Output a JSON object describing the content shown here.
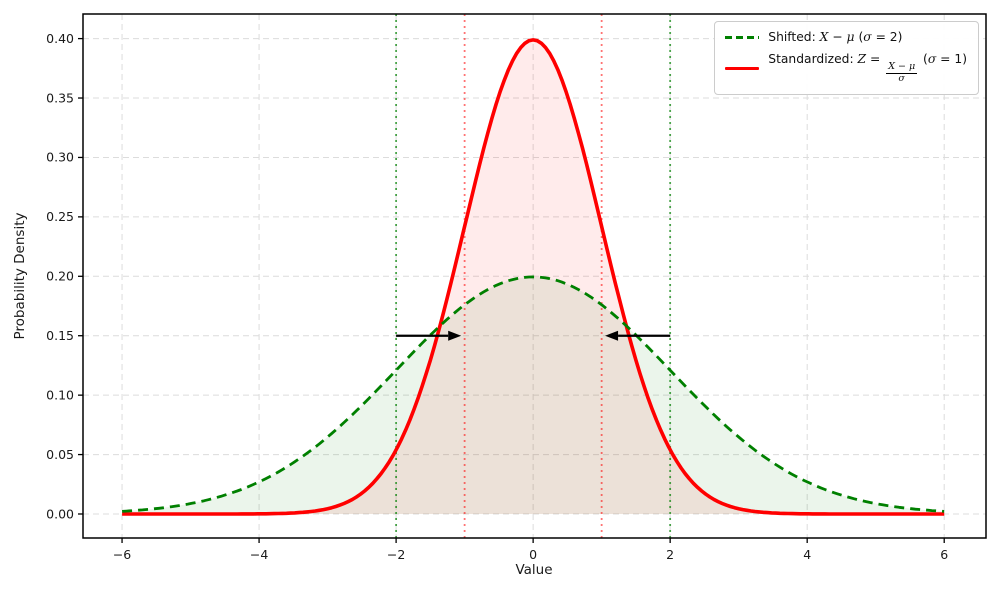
{
  "chart_data": {
    "type": "line",
    "title": "",
    "xlabel": "Value",
    "ylabel": "Probability Density",
    "xlim": [
      -6.57,
      6.61
    ],
    "ylim": [
      -0.0202,
      0.4207
    ],
    "xticks": [
      -6,
      -4,
      -2,
      0,
      2,
      4,
      6
    ],
    "xtick_labels": [
      "−6",
      "−4",
      "−2",
      "0",
      "2",
      "4",
      "6"
    ],
    "yticks": [
      0,
      0.05,
      0.1,
      0.15,
      0.2,
      0.25,
      0.3,
      0.35,
      0.4
    ],
    "ytick_labels": [
      "0.00",
      "0.05",
      "0.10",
      "0.15",
      "0.20",
      "0.25",
      "0.30",
      "0.35",
      "0.40"
    ],
    "grid": true,
    "grid_color": "#dcdcdc",
    "legend_position": "upper right",
    "series": [
      {
        "name": "Shifted: X − μ (σ = 2)",
        "curve": "normal_pdf",
        "mu": 0,
        "sigma": 2,
        "x_range": [
          -6,
          6
        ],
        "peak_y": 0.1995,
        "color": "#008000",
        "linestyle": "dashed",
        "linewidth": 2.8,
        "fill": true,
        "fill_color": "rgba(0,128,0,0.08)",
        "sample_x": [
          -6,
          -5,
          -4,
          -3,
          -2,
          -1,
          0,
          1,
          2,
          3,
          4,
          5,
          6
        ],
        "sample_y": [
          0.0022,
          0.0088,
          0.027,
          0.0648,
          0.121,
          0.176,
          0.1995,
          0.176,
          0.121,
          0.0648,
          0.027,
          0.0088,
          0.0022
        ]
      },
      {
        "name": "Standardized: Z = (X − μ)/σ (σ = 1)",
        "curve": "normal_pdf",
        "mu": 0,
        "sigma": 1,
        "x_range": [
          -6,
          6
        ],
        "peak_y": 0.3989,
        "color": "#ff0000",
        "linestyle": "solid",
        "linewidth": 3.6,
        "fill": true,
        "fill_color": "rgba(255,0,0,0.08)",
        "sample_x": [
          -6,
          -5,
          -4,
          -3,
          -2,
          -1,
          0,
          1,
          2,
          3,
          4,
          5,
          6
        ],
        "sample_y": [
          0.0,
          0.0,
          0.0001,
          0.0044,
          0.054,
          0.242,
          0.3989,
          0.242,
          0.054,
          0.0044,
          0.0001,
          0.0,
          0.0
        ]
      }
    ],
    "reference_lines": [
      {
        "x": -2,
        "color": "rgba(0,128,0,0.7)",
        "style": "dotted",
        "label": "shifted-sigma-minus2"
      },
      {
        "x": 2,
        "color": "rgba(0,128,0,0.7)",
        "style": "dotted",
        "label": "shifted-sigma-plus2"
      },
      {
        "x": -1,
        "color": "rgba(255,0,0,0.55)",
        "style": "dotted",
        "label": "standard-sigma-minus1"
      },
      {
        "x": 1,
        "color": "rgba(255,0,0,0.55)",
        "style": "dotted",
        "label": "standard-sigma-plus1"
      }
    ],
    "annotations": [
      {
        "type": "arrow",
        "from_x": -2,
        "to_x": -1.05,
        "y": 0.15,
        "color": "#000000"
      },
      {
        "type": "arrow",
        "from_x": 2,
        "to_x": 1.05,
        "y": 0.15,
        "color": "#000000"
      }
    ]
  },
  "legend": {
    "item1": {
      "p1": "Shifted: ",
      "p2": "X",
      "p3": " − ",
      "p4": "μ",
      "p5": " (",
      "p6": "σ",
      "p7": " = 2)"
    },
    "item2": {
      "p1": "Standardized: ",
      "p2": "Z",
      "p3": " = ",
      "frac_num": "X − μ",
      "frac_den": "σ",
      "p5": " (",
      "p6": "σ",
      "p7": " = 1)"
    }
  }
}
